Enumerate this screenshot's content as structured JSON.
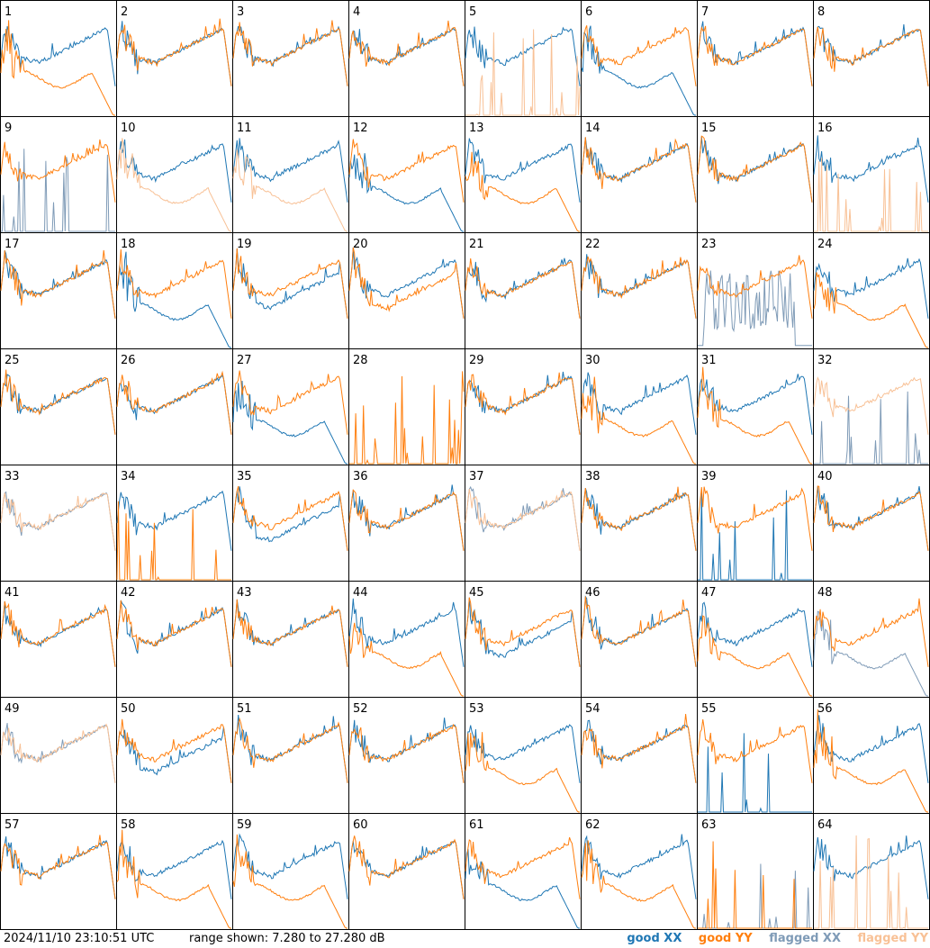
{
  "footer": {
    "timestamp": "2024/11/10 23:10:51 UTC",
    "range_text": "range shown: 7.280 to 27.280 dB"
  },
  "legend": {
    "good_xx": "good XX",
    "good_yy": "good YY",
    "flagged_xx": "flagged XX",
    "flagged_yy": "flagged YY"
  },
  "colors": {
    "good_xx": "#1f77b4",
    "good_yy": "#ff7f0e",
    "flagged_xx": "#7f9bb7",
    "flagged_yy": "#f8c196"
  },
  "chart_data": {
    "type": "line",
    "grid_cols": 8,
    "grid_rows": 8,
    "ylim_db": [
      7.28,
      27.28
    ],
    "panels": [
      {
        "label": "1",
        "xx": "good",
        "yy": "good",
        "xx_shape": "normal",
        "yy_shape": "dropoff"
      },
      {
        "label": "2",
        "xx": "good",
        "yy": "good",
        "xx_shape": "normal",
        "yy_shape": "normal"
      },
      {
        "label": "3",
        "xx": "good",
        "yy": "good",
        "xx_shape": "normal",
        "yy_shape": "normal"
      },
      {
        "label": "4",
        "xx": "good",
        "yy": "good",
        "xx_shape": "normal",
        "yy_shape": "normal"
      },
      {
        "label": "5",
        "xx": "good",
        "yy": "flagged",
        "xx_shape": "normal",
        "yy_shape": "spikes"
      },
      {
        "label": "6",
        "xx": "good",
        "yy": "good",
        "xx_shape": "dropoff",
        "yy_shape": "normal"
      },
      {
        "label": "7",
        "xx": "good",
        "yy": "good",
        "xx_shape": "normal",
        "yy_shape": "normal"
      },
      {
        "label": "8",
        "xx": "good",
        "yy": "good",
        "xx_shape": "normal",
        "yy_shape": "normal"
      },
      {
        "label": "9",
        "xx": "flagged",
        "yy": "good",
        "xx_shape": "spikes",
        "yy_shape": "normal"
      },
      {
        "label": "10",
        "xx": "good",
        "yy": "flagged",
        "xx_shape": "normal",
        "yy_shape": "dropoff"
      },
      {
        "label": "11",
        "xx": "good",
        "yy": "flagged",
        "xx_shape": "normal",
        "yy_shape": "dropoff"
      },
      {
        "label": "12",
        "xx": "good",
        "yy": "good",
        "xx_shape": "dropoff",
        "yy_shape": "normal"
      },
      {
        "label": "13",
        "xx": "good",
        "yy": "good",
        "xx_shape": "normal",
        "yy_shape": "dropoff"
      },
      {
        "label": "14",
        "xx": "good",
        "yy": "good",
        "xx_shape": "normal",
        "yy_shape": "normal"
      },
      {
        "label": "15",
        "xx": "good",
        "yy": "good",
        "xx_shape": "normal",
        "yy_shape": "normal"
      },
      {
        "label": "16",
        "xx": "good",
        "yy": "flagged",
        "xx_shape": "normal",
        "yy_shape": "spikes"
      },
      {
        "label": "17",
        "xx": "good",
        "yy": "good",
        "xx_shape": "normal",
        "yy_shape": "normal"
      },
      {
        "label": "18",
        "xx": "good",
        "yy": "good",
        "xx_shape": "dropoff",
        "yy_shape": "normal"
      },
      {
        "label": "19",
        "xx": "good",
        "yy": "good",
        "xx_shape": "low",
        "yy_shape": "normal"
      },
      {
        "label": "20",
        "xx": "good",
        "yy": "good",
        "xx_shape": "normal",
        "yy_shape": "low"
      },
      {
        "label": "21",
        "xx": "good",
        "yy": "good",
        "xx_shape": "normal",
        "yy_shape": "normal"
      },
      {
        "label": "22",
        "xx": "good",
        "yy": "good",
        "xx_shape": "normal",
        "yy_shape": "normal"
      },
      {
        "label": "23",
        "xx": "flagged",
        "yy": "good",
        "xx_shape": "noise",
        "yy_shape": "normal"
      },
      {
        "label": "24",
        "xx": "good",
        "yy": "good",
        "xx_shape": "normal",
        "yy_shape": "dropoff"
      },
      {
        "label": "25",
        "xx": "good",
        "yy": "good",
        "xx_shape": "normal",
        "yy_shape": "normal"
      },
      {
        "label": "26",
        "xx": "good",
        "yy": "good",
        "xx_shape": "normal",
        "yy_shape": "normal"
      },
      {
        "label": "27",
        "xx": "good",
        "yy": "good",
        "xx_shape": "dropoff",
        "yy_shape": "normal"
      },
      {
        "label": "28",
        "xx": "flagged",
        "yy": "good",
        "xx_shape": "none",
        "yy_shape": "spikes"
      },
      {
        "label": "29",
        "xx": "good",
        "yy": "good",
        "xx_shape": "normal",
        "yy_shape": "normal"
      },
      {
        "label": "30",
        "xx": "good",
        "yy": "good",
        "xx_shape": "normal",
        "yy_shape": "dropoff"
      },
      {
        "label": "31",
        "xx": "good",
        "yy": "good",
        "xx_shape": "normal",
        "yy_shape": "dropoff"
      },
      {
        "label": "32",
        "xx": "flagged",
        "yy": "flagged",
        "xx_shape": "spikes",
        "yy_shape": "normal"
      },
      {
        "label": "33",
        "xx": "flagged",
        "yy": "flagged",
        "xx_shape": "normal",
        "yy_shape": "normal"
      },
      {
        "label": "34",
        "xx": "good",
        "yy": "good",
        "xx_shape": "normal",
        "yy_shape": "spikes"
      },
      {
        "label": "35",
        "xx": "good",
        "yy": "good",
        "xx_shape": "low",
        "yy_shape": "normal"
      },
      {
        "label": "36",
        "xx": "good",
        "yy": "good",
        "xx_shape": "normal",
        "yy_shape": "normal"
      },
      {
        "label": "37",
        "xx": "flagged",
        "yy": "flagged",
        "xx_shape": "normal",
        "yy_shape": "normal"
      },
      {
        "label": "38",
        "xx": "good",
        "yy": "good",
        "xx_shape": "normal",
        "yy_shape": "normal"
      },
      {
        "label": "39",
        "xx": "good",
        "yy": "good",
        "xx_shape": "spikes",
        "yy_shape": "normal"
      },
      {
        "label": "40",
        "xx": "good",
        "yy": "good",
        "xx_shape": "normal",
        "yy_shape": "normal"
      },
      {
        "label": "41",
        "xx": "good",
        "yy": "good",
        "xx_shape": "normal",
        "yy_shape": "normal"
      },
      {
        "label": "42",
        "xx": "good",
        "yy": "good",
        "xx_shape": "normal",
        "yy_shape": "normal"
      },
      {
        "label": "43",
        "xx": "good",
        "yy": "good",
        "xx_shape": "normal",
        "yy_shape": "normal"
      },
      {
        "label": "44",
        "xx": "good",
        "yy": "good",
        "xx_shape": "normal",
        "yy_shape": "dropoff"
      },
      {
        "label": "45",
        "xx": "good",
        "yy": "good",
        "xx_shape": "low",
        "yy_shape": "normal"
      },
      {
        "label": "46",
        "xx": "good",
        "yy": "good",
        "xx_shape": "normal",
        "yy_shape": "normal"
      },
      {
        "label": "47",
        "xx": "good",
        "yy": "good",
        "xx_shape": "normal",
        "yy_shape": "dropoff"
      },
      {
        "label": "48",
        "xx": "flagged",
        "yy": "good",
        "xx_shape": "dropoff",
        "yy_shape": "normal"
      },
      {
        "label": "49",
        "xx": "flagged",
        "yy": "flagged",
        "xx_shape": "normal",
        "yy_shape": "normal"
      },
      {
        "label": "50",
        "xx": "good",
        "yy": "good",
        "xx_shape": "low",
        "yy_shape": "normal"
      },
      {
        "label": "51",
        "xx": "good",
        "yy": "good",
        "xx_shape": "normal",
        "yy_shape": "normal"
      },
      {
        "label": "52",
        "xx": "good",
        "yy": "good",
        "xx_shape": "normal",
        "yy_shape": "normal"
      },
      {
        "label": "53",
        "xx": "good",
        "yy": "good",
        "xx_shape": "normal",
        "yy_shape": "dropoff"
      },
      {
        "label": "54",
        "xx": "good",
        "yy": "good",
        "xx_shape": "normal",
        "yy_shape": "normal"
      },
      {
        "label": "55",
        "xx": "good",
        "yy": "good",
        "xx_shape": "spikes",
        "yy_shape": "normal"
      },
      {
        "label": "56",
        "xx": "good",
        "yy": "good",
        "xx_shape": "normal",
        "yy_shape": "dropoff"
      },
      {
        "label": "57",
        "xx": "good",
        "yy": "good",
        "xx_shape": "normal",
        "yy_shape": "normal"
      },
      {
        "label": "58",
        "xx": "good",
        "yy": "good",
        "xx_shape": "normal",
        "yy_shape": "dropoff"
      },
      {
        "label": "59",
        "xx": "good",
        "yy": "good",
        "xx_shape": "normal",
        "yy_shape": "dropoff"
      },
      {
        "label": "60",
        "xx": "good",
        "yy": "good",
        "xx_shape": "normal",
        "yy_shape": "normal"
      },
      {
        "label": "61",
        "xx": "good",
        "yy": "good",
        "xx_shape": "dropoff",
        "yy_shape": "normal"
      },
      {
        "label": "62",
        "xx": "good",
        "yy": "good",
        "xx_shape": "normal",
        "yy_shape": "dropoff"
      },
      {
        "label": "63",
        "xx": "flagged",
        "yy": "good",
        "xx_shape": "spikes",
        "yy_shape": "spikes"
      },
      {
        "label": "64",
        "xx": "good",
        "yy": "flagged",
        "xx_shape": "normal",
        "yy_shape": "spikes"
      }
    ]
  }
}
